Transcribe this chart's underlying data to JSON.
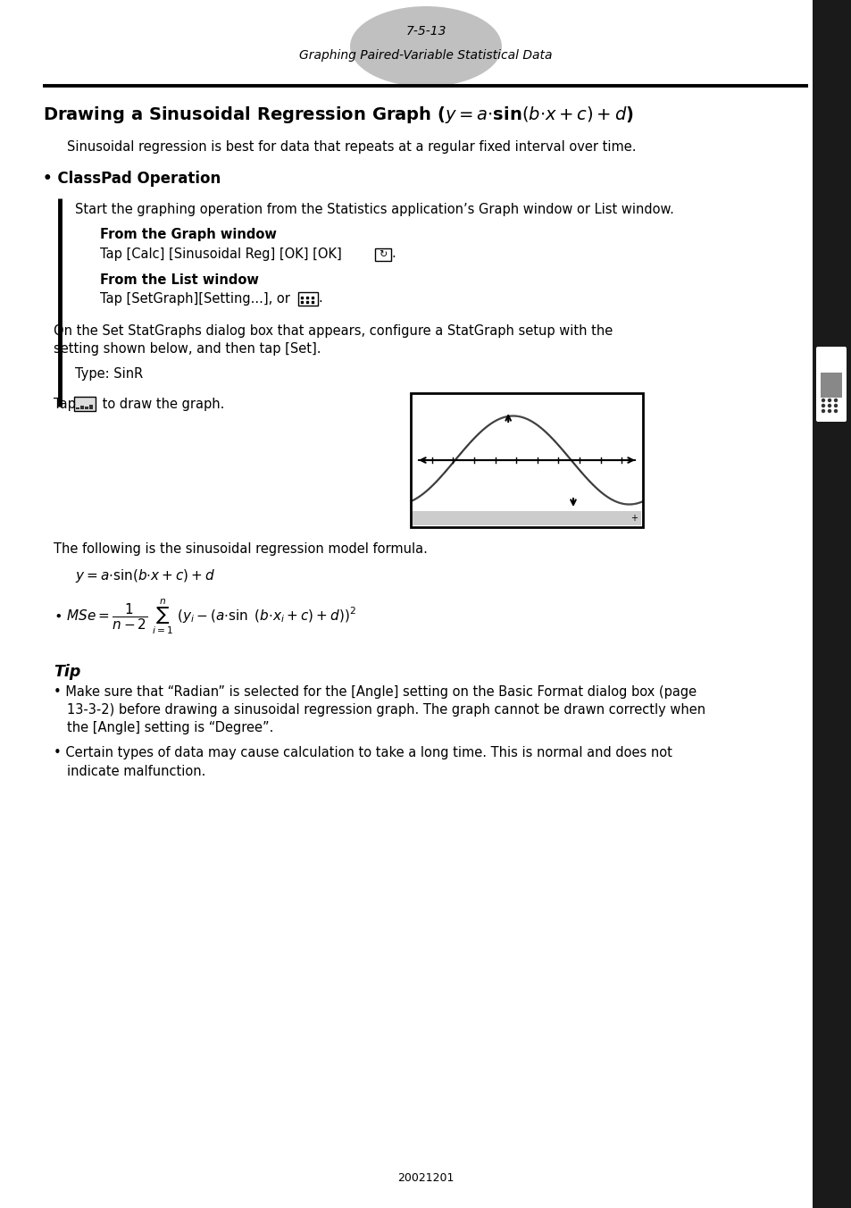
{
  "page_number": "7-5-13",
  "page_subtitle": "Graphing Paired-Variable Statistical Data",
  "intro_text": "Sinusoidal regression is best for data that repeats at a regular fixed interval over time.",
  "bullet_head": "• ClassPad Operation",
  "classpad_op_text": "Start the graphing operation from the Statistics application’s Graph window or List window.",
  "from_graph_bold": "From the Graph window",
  "from_graph_text": "Tap [Calc] [Sinusoidal Reg] [OK] [OK] Θ.",
  "from_list_bold": "From the List window",
  "from_list_text": "Tap [SetGraph][Setting...], or ▤.",
  "statgraph_line1": "On the Set StatGraphs dialog box that appears, configure a StatGraph setup with the",
  "statgraph_line2": "setting shown below, and then tap [Set].",
  "type_text": "Type: SinR",
  "tap_prefix": "Tap ",
  "tap_suffix": " to draw the graph.",
  "model_label": "The following is the sinusoidal regression model formula.",
  "tip_head": "Tip",
  "tip1_line1": "• Make sure that “Radian” is selected for the [Angle] setting on the Basic Format dialog box (page",
  "tip1_line2": "13-3-2) before drawing a sinusoidal regression graph. The graph cannot be drawn correctly when",
  "tip1_line3": "the [Angle] setting is “Degree”.",
  "tip2_line1": "• Certain types of data may cause calculation to take a long time. This is normal and does not",
  "tip2_line2": "indicate malfunction.",
  "footer_text": "20021201",
  "bg_color": "#ffffff",
  "text_color": "#000000",
  "tab_color": "#c0c0c0",
  "sidebar_color": "#1a1a1a",
  "left_bar_color": "#000000"
}
